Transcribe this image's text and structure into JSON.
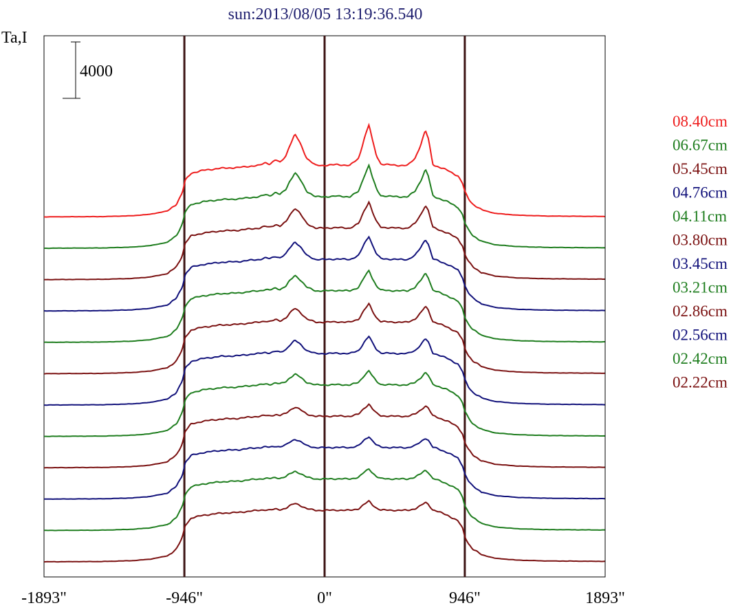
{
  "chart_data": {
    "type": "line",
    "title": "sun:2013/08/05 13:19:36.540",
    "ylabel": "Ta,I",
    "scale_bar_label": "4000",
    "scale_bar_value": 4000,
    "xlim": [
      -1893,
      1893
    ],
    "x_ticks": [
      {
        "value": -1893,
        "label": "-1893\""
      },
      {
        "value": -946,
        "label": "-946\""
      },
      {
        "value": 0,
        "label": "0\""
      },
      {
        "value": 946,
        "label": "946\""
      },
      {
        "value": 1893,
        "label": "1893\""
      }
    ],
    "reference_lines_x": [
      -946,
      0,
      946
    ],
    "reference_line_color": "#3c1414",
    "legend_position": "right",
    "units": "arcsec",
    "series": [
      {
        "name": "08.40cm",
        "color": "#ee1c1c",
        "stack_index": 11
      },
      {
        "name": "06.67cm",
        "color": "#1e7d1e",
        "stack_index": 10
      },
      {
        "name": "05.45cm",
        "color": "#7a1010",
        "stack_index": 9
      },
      {
        "name": "04.76cm",
        "color": "#10107a",
        "stack_index": 8
      },
      {
        "name": "04.11cm",
        "color": "#1e7d1e",
        "stack_index": 7
      },
      {
        "name": "03.80cm",
        "color": "#7a1010",
        "stack_index": 6
      },
      {
        "name": "03.45cm",
        "color": "#10107a",
        "stack_index": 5
      },
      {
        "name": "03.21cm",
        "color": "#1e7d1e",
        "stack_index": 4
      },
      {
        "name": "02.86cm",
        "color": "#7a1010",
        "stack_index": 3
      },
      {
        "name": "02.56cm",
        "color": "#10107a",
        "stack_index": 2
      },
      {
        "name": "02.42cm",
        "color": "#1e7d1e",
        "stack_index": 1
      },
      {
        "name": "02.22cm",
        "color": "#7a1010",
        "stack_index": 0
      }
    ],
    "profile_x": [
      -1893,
      -1500,
      -1300,
      -1180,
      -1060,
      -1000,
      -960,
      -940,
      -900,
      -820,
      -700,
      -580,
      -500,
      -440,
      -400,
      -370,
      -330,
      -300,
      -260,
      -240,
      -200,
      -170,
      -120,
      -60,
      0,
      80,
      170,
      230,
      270,
      300,
      320,
      350,
      380,
      420,
      500,
      560,
      610,
      650,
      680,
      700,
      730,
      780,
      830,
      900,
      930,
      946,
      970,
      1000,
      1060,
      1150,
      1300,
      1500,
      1893
    ],
    "base_profile": [
      0,
      20,
      80,
      180,
      420,
      900,
      1700,
      2600,
      3100,
      3300,
      3450,
      3500,
      3600,
      3650,
      3750,
      3700,
      3850,
      3750,
      4000,
      4300,
      4750,
      4500,
      3900,
      3650,
      3650,
      3680,
      3650,
      3900,
      4650,
      5100,
      4600,
      4000,
      3700,
      3680,
      3650,
      3650,
      3900,
      4400,
      4900,
      4600,
      3700,
      3500,
      3300,
      2900,
      2400,
      1800,
      1300,
      900,
      500,
      250,
      120,
      60,
      30
    ],
    "peak_scale": [
      0.45,
      0.5,
      0.55,
      0.6,
      0.7,
      0.85,
      0.9,
      1.0,
      1.15,
      1.3,
      1.55,
      2.0
    ],
    "stack_spacing": 4000
  }
}
